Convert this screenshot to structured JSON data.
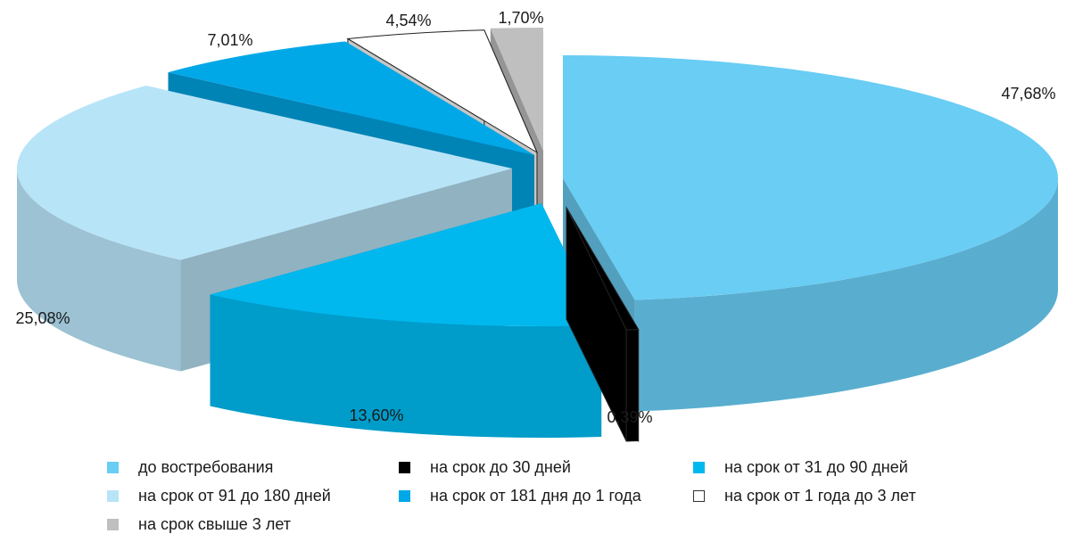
{
  "chart_data": {
    "type": "pie",
    "categories": [
      "до востребования",
      "на срок до 30 дней",
      "на срок от 31 до 90 дней",
      "на срок от 91  до 180 дней",
      "на срок от 181 дня до 1 года",
      "на срок от 1 года до 3 лет",
      "на срок свыше 3 лет"
    ],
    "values": [
      47.68,
      0.39,
      13.6,
      25.08,
      7.01,
      4.54,
      1.7
    ],
    "value_labels": [
      "47,68%",
      "0,39%",
      "13,60%",
      "25,08%",
      "7,01%",
      "4,54%",
      "1,70%"
    ],
    "colors": [
      "#69CDF4",
      "#000000",
      "#00B8EE",
      "#B8E4F8",
      "#00A8E8",
      "#FFFFFF",
      "#BFBFBF"
    ],
    "legend_position": "bottom",
    "style": "3d-exploded"
  },
  "legend": {
    "items": [
      {
        "label": "до востребования",
        "color": "#69CDF4"
      },
      {
        "label": "на срок до 30 дней",
        "color": "#000000"
      },
      {
        "label": "на срок от 31 до 90 дней",
        "color": "#00B8EE"
      },
      {
        "label": "на срок от 91  до 180 дней",
        "color": "#B8E4F8"
      },
      {
        "label": "на срок от 181 дня до 1 года",
        "color": "#00A8E8"
      },
      {
        "label": "на срок от 1 года до 3 лет",
        "color": "#FFFFFF"
      },
      {
        "label": "на срок свыше 3 лет",
        "color": "#BFBFBF"
      }
    ]
  }
}
